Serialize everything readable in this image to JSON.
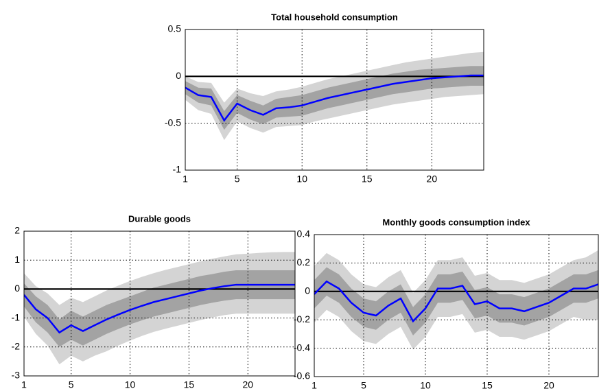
{
  "chart_data": [
    {
      "type": "band_line",
      "title": "Total household consumption",
      "x": [
        1,
        2,
        3,
        4,
        5,
        6,
        7,
        8,
        9,
        10,
        11,
        12,
        13,
        14,
        15,
        16,
        17,
        18,
        19,
        20,
        21,
        22,
        23,
        24
      ],
      "values": [
        -0.12,
        -0.2,
        -0.22,
        -0.47,
        -0.29,
        -0.36,
        -0.41,
        -0.34,
        -0.33,
        -0.31,
        -0.27,
        -0.23,
        -0.2,
        -0.17,
        -0.14,
        -0.11,
        -0.08,
        -0.06,
        -0.04,
        -0.02,
        -0.01,
        0,
        0.01,
        0.01
      ],
      "color": "#0000ff",
      "bands": [
        {
          "color": "#d4d4d4",
          "upper": [
            0,
            -0.06,
            -0.07,
            -0.28,
            -0.13,
            -0.18,
            -0.21,
            -0.16,
            -0.14,
            -0.11,
            -0.07,
            -0.03,
            0,
            0.03,
            0.06,
            0.09,
            0.12,
            0.15,
            0.17,
            0.19,
            0.21,
            0.23,
            0.25,
            0.26
          ],
          "lower": [
            -0.25,
            -0.36,
            -0.4,
            -0.68,
            -0.48,
            -0.55,
            -0.6,
            -0.54,
            -0.53,
            -0.52,
            -0.48,
            -0.45,
            -0.42,
            -0.39,
            -0.36,
            -0.33,
            -0.3,
            -0.28,
            -0.26,
            -0.24,
            -0.22,
            -0.21,
            -0.2,
            -0.19
          ]
        },
        {
          "color": "#a3a3a3",
          "upper": [
            -0.05,
            -0.12,
            -0.13,
            -0.37,
            -0.2,
            -0.26,
            -0.31,
            -0.24,
            -0.22,
            -0.2,
            -0.16,
            -0.12,
            -0.09,
            -0.06,
            -0.03,
            0,
            0.03,
            0.05,
            0.07,
            0.08,
            0.09,
            0.1,
            0.11,
            0.11
          ],
          "lower": [
            -0.19,
            -0.28,
            -0.31,
            -0.57,
            -0.39,
            -0.46,
            -0.51,
            -0.44,
            -0.43,
            -0.42,
            -0.38,
            -0.34,
            -0.31,
            -0.28,
            -0.25,
            -0.22,
            -0.19,
            -0.17,
            -0.15,
            -0.13,
            -0.12,
            -0.11,
            -0.1,
            -0.1
          ]
        }
      ],
      "reference_line": {
        "value": 0,
        "color": "#000000"
      },
      "xlim": [
        1,
        24
      ],
      "xticks": [
        1,
        5,
        10,
        15,
        20
      ],
      "ylim": [
        -1,
        0.5
      ],
      "yticks": [
        0.5,
        0,
        -0.5,
        -1
      ],
      "grid": true
    },
    {
      "type": "band_line",
      "title": "Durable goods",
      "x": [
        1,
        2,
        3,
        4,
        5,
        6,
        7,
        8,
        9,
        10,
        11,
        12,
        13,
        14,
        15,
        16,
        17,
        18,
        19,
        20,
        21,
        22,
        23,
        24
      ],
      "values": [
        -0.2,
        -0.7,
        -1.0,
        -1.5,
        -1.25,
        -1.45,
        -1.25,
        -1.05,
        -0.88,
        -0.72,
        -0.58,
        -0.45,
        -0.35,
        -0.25,
        -0.15,
        -0.05,
        0.03,
        0.1,
        0.15,
        0.15,
        0.15,
        0.15,
        0.15,
        0.15
      ],
      "color": "#0000ff",
      "bands": [
        {
          "color": "#d4d4d4",
          "upper": [
            0.55,
            0.1,
            -0.15,
            -0.55,
            -0.3,
            -0.45,
            -0.25,
            -0.05,
            0.12,
            0.28,
            0.42,
            0.55,
            0.66,
            0.76,
            0.86,
            0.96,
            1.05,
            1.13,
            1.2,
            1.22,
            1.25,
            1.27,
            1.28,
            1.28
          ],
          "lower": [
            -0.95,
            -1.55,
            -1.95,
            -2.6,
            -2.3,
            -2.5,
            -2.3,
            -2.15,
            -1.95,
            -1.78,
            -1.62,
            -1.48,
            -1.37,
            -1.27,
            -1.17,
            -1.07,
            -0.98,
            -0.9,
            -0.85,
            -0.85,
            -0.85,
            -0.85,
            -0.85,
            -0.85
          ]
        },
        {
          "color": "#a3a3a3",
          "upper": [
            0.2,
            -0.25,
            -0.55,
            -1.05,
            -0.75,
            -0.95,
            -0.75,
            -0.55,
            -0.4,
            -0.25,
            -0.1,
            0.05,
            0.15,
            0.25,
            0.35,
            0.45,
            0.52,
            0.6,
            0.65,
            0.65,
            0.65,
            0.65,
            0.65,
            0.65
          ],
          "lower": [
            -0.6,
            -1.15,
            -1.5,
            -2.0,
            -1.75,
            -1.95,
            -1.75,
            -1.55,
            -1.38,
            -1.22,
            -1.08,
            -0.95,
            -0.85,
            -0.75,
            -0.65,
            -0.55,
            -0.47,
            -0.4,
            -0.35,
            -0.35,
            -0.35,
            -0.35,
            -0.35,
            -0.35
          ]
        }
      ],
      "reference_line": {
        "value": 0,
        "color": "#000000"
      },
      "xlim": [
        1,
        24
      ],
      "xticks": [
        1,
        5,
        10,
        15,
        20
      ],
      "ylim": [
        -3,
        2
      ],
      "yticks": [
        2,
        1,
        0,
        -1,
        -2,
        -3
      ],
      "grid": true
    },
    {
      "type": "band_line",
      "title": "Monthly goods consumption index",
      "x": [
        1,
        2,
        3,
        4,
        5,
        6,
        7,
        8,
        9,
        10,
        11,
        12,
        13,
        14,
        15,
        16,
        17,
        18,
        19,
        20,
        21,
        22,
        23,
        24
      ],
      "values": [
        -0.02,
        0.07,
        0.02,
        -0.08,
        -0.15,
        -0.17,
        -0.1,
        -0.05,
        -0.21,
        -0.12,
        0.02,
        0.02,
        0.04,
        -0.09,
        -0.07,
        -0.12,
        -0.12,
        -0.14,
        -0.11,
        -0.08,
        -0.03,
        0.02,
        0.02,
        0.05
      ],
      "color": "#0000ff",
      "bands": [
        {
          "color": "#d4d4d4",
          "upper": [
            0.18,
            0.27,
            0.22,
            0.12,
            0.05,
            0.03,
            0.1,
            0.15,
            -0.01,
            0.08,
            0.22,
            0.22,
            0.24,
            0.11,
            0.13,
            0.08,
            0.08,
            0.06,
            0.09,
            0.12,
            0.17,
            0.22,
            0.24,
            0.29
          ],
          "lower": [
            -0.22,
            -0.13,
            -0.18,
            -0.28,
            -0.35,
            -0.37,
            -0.3,
            -0.25,
            -0.41,
            -0.32,
            -0.18,
            -0.18,
            -0.16,
            -0.29,
            -0.27,
            -0.32,
            -0.32,
            -0.34,
            -0.31,
            -0.28,
            -0.23,
            -0.18,
            -0.2,
            -0.2
          ]
        },
        {
          "color": "#a3a3a3",
          "upper": [
            0.08,
            0.17,
            0.12,
            0.02,
            -0.05,
            -0.07,
            0,
            0.05,
            -0.11,
            -0.02,
            0.12,
            0.12,
            0.14,
            0.01,
            0.03,
            -0.02,
            -0.02,
            -0.04,
            -0.01,
            0.02,
            0.07,
            0.12,
            0.12,
            0.15
          ],
          "lower": [
            -0.12,
            -0.03,
            -0.08,
            -0.18,
            -0.25,
            -0.27,
            -0.2,
            -0.15,
            -0.31,
            -0.22,
            -0.08,
            -0.08,
            -0.06,
            -0.19,
            -0.17,
            -0.22,
            -0.22,
            -0.24,
            -0.21,
            -0.18,
            -0.13,
            -0.08,
            -0.08,
            -0.05
          ]
        }
      ],
      "reference_line": {
        "value": 0,
        "color": "#000000"
      },
      "xlim": [
        1,
        24
      ],
      "xticks": [
        1,
        5,
        10,
        15,
        20
      ],
      "ylim": [
        -0.6,
        0.4
      ],
      "yticks": [
        0.4,
        0.2,
        0,
        -0.2,
        -0.4,
        -0.6
      ],
      "grid": true
    }
  ]
}
